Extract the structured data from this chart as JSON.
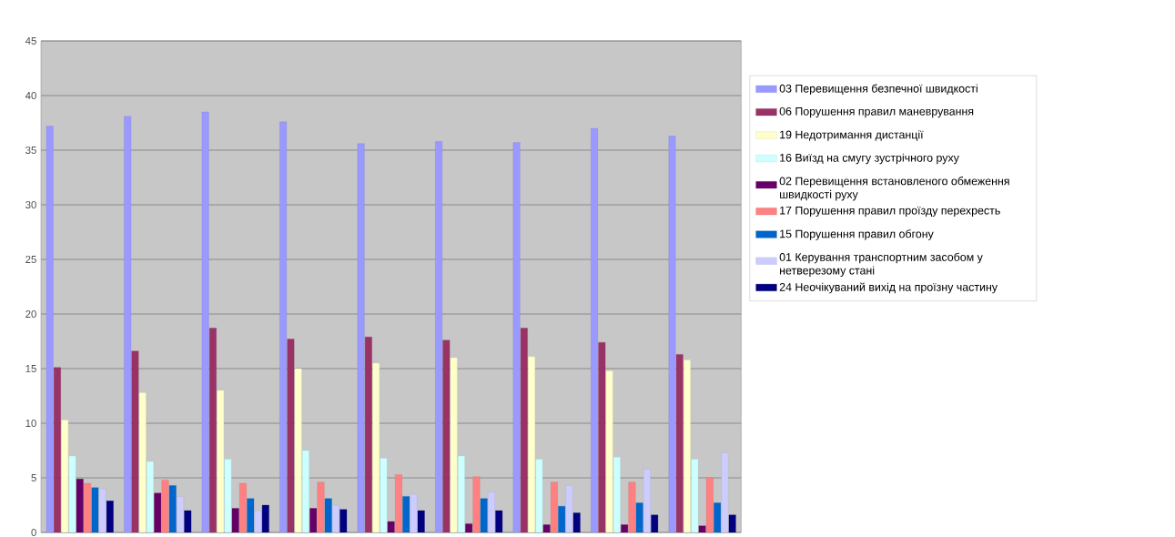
{
  "chart_data": {
    "type": "bar",
    "categories": [
      null,
      null,
      null,
      null,
      null,
      null,
      null,
      null,
      null
    ],
    "series": [
      {
        "name": "03  Перевищення безпечної швидкості",
        "color": "#9999ff",
        "values": [
          37.2,
          38.1,
          38.5,
          37.6,
          35.6,
          35.8,
          35.7,
          37.0,
          36.3
        ]
      },
      {
        "name": "06  Порушення правил маневрування",
        "color": "#993366",
        "values": [
          15.1,
          16.6,
          18.7,
          17.7,
          17.9,
          17.6,
          18.7,
          17.4,
          16.3
        ]
      },
      {
        "name": "19 Недотримання дистанції",
        "color": "#ffffcc",
        "values": [
          10.3,
          12.8,
          13.0,
          15.0,
          15.5,
          16.0,
          16.1,
          14.8,
          15.8
        ]
      },
      {
        "name": "16 Виїзд на смугу зустрічного руху",
        "color": "#ccffff",
        "values": [
          7.0,
          6.5,
          6.7,
          7.5,
          6.8,
          7.0,
          6.7,
          6.9,
          6.7
        ]
      },
      {
        "name": "02 Перевищення встановленого обмеження швидкості руху",
        "color": "#660066",
        "values": [
          4.9,
          3.6,
          2.2,
          2.2,
          1.0,
          0.8,
          0.7,
          0.7,
          0.6
        ]
      },
      {
        "name": "17 Порушення правил проїзду перехресть",
        "color": "#ff8080",
        "values": [
          4.5,
          4.8,
          4.5,
          4.6,
          5.3,
          5.1,
          4.6,
          4.6,
          5.0
        ]
      },
      {
        "name": "15 Порушення правил обгону",
        "color": "#0066cc",
        "values": [
          4.1,
          4.3,
          3.1,
          3.1,
          3.3,
          3.1,
          2.4,
          2.7,
          2.7
        ]
      },
      {
        "name": "01 Керування транспортним засобом у нетверезому стані",
        "color": "#ccccff",
        "values": [
          4.0,
          3.3,
          2.0,
          2.5,
          3.5,
          3.7,
          4.3,
          5.8,
          7.3
        ]
      },
      {
        "name": "24 Неочікуваний вихід на проїзну частину",
        "color": "#000080",
        "values": [
          2.9,
          2.0,
          2.5,
          2.1,
          2.0,
          2.0,
          1.8,
          1.6,
          1.6
        ]
      }
    ],
    "ylim": [
      0,
      45
    ],
    "yticks": [
      0,
      5,
      10,
      15,
      20,
      25,
      30,
      35,
      40,
      45
    ],
    "grid": "y",
    "legend": "right"
  }
}
